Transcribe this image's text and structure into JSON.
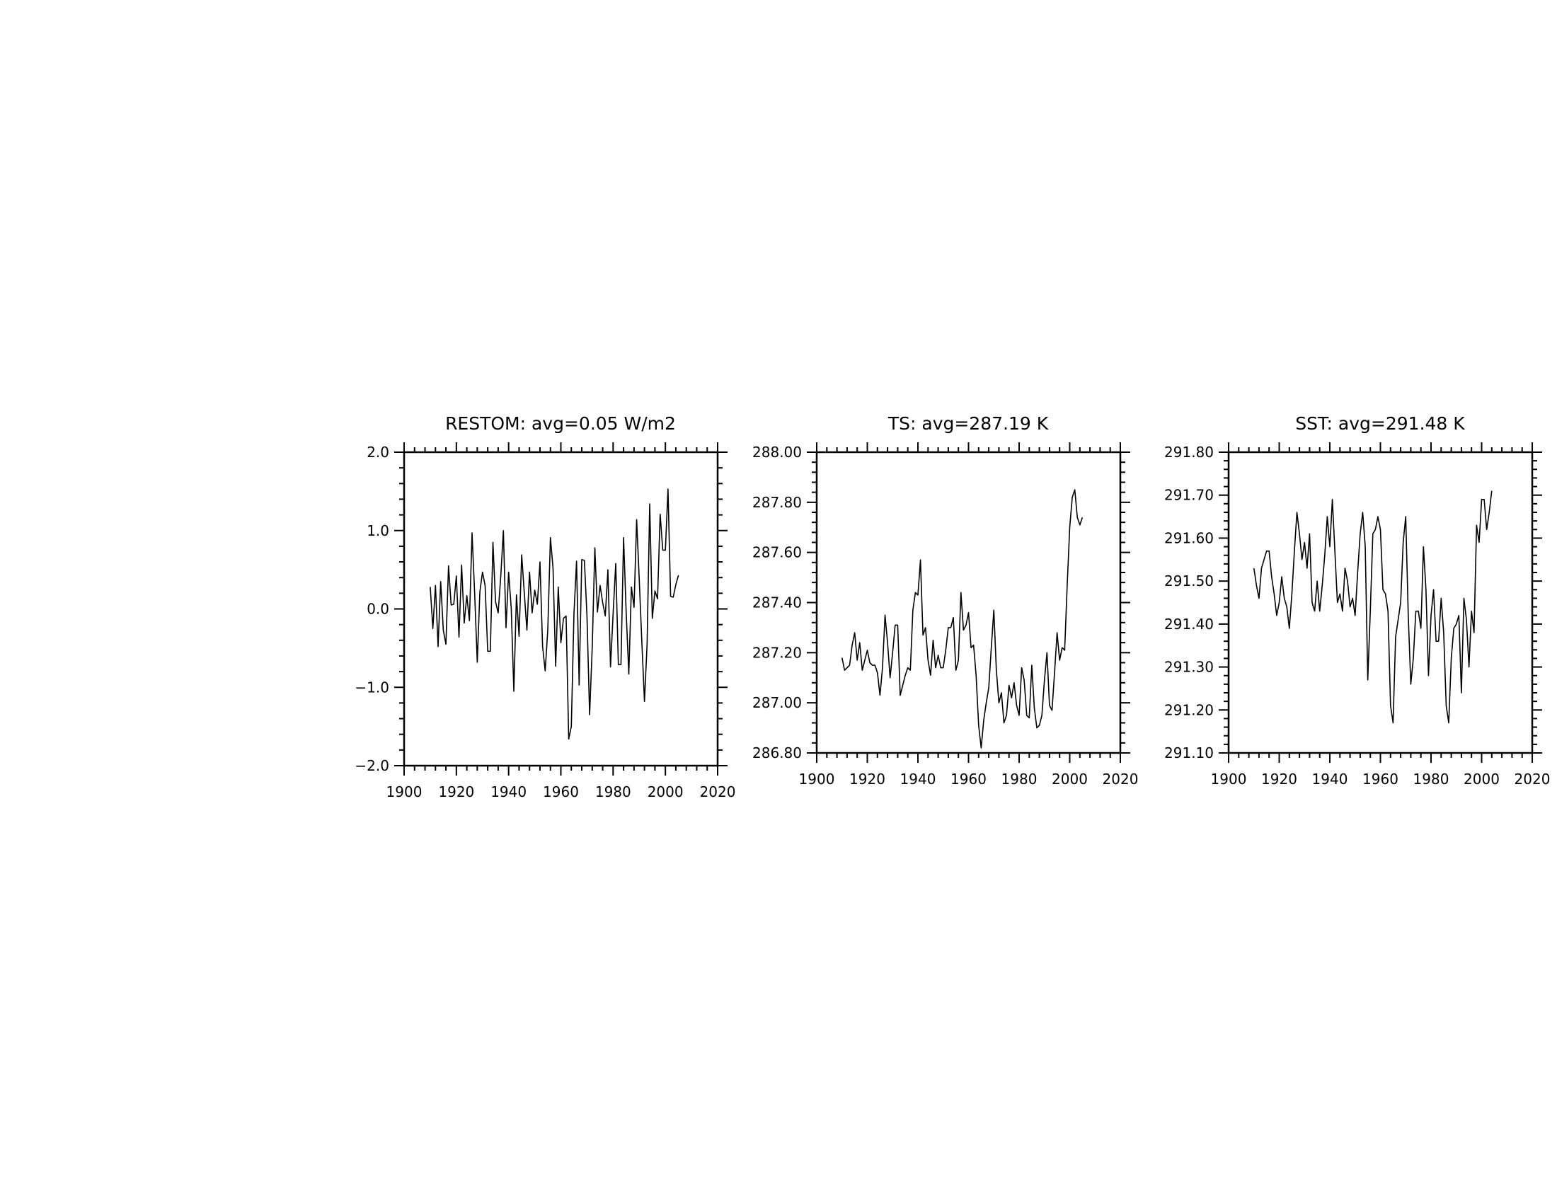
{
  "chart_data": [
    {
      "type": "line",
      "title": "RESTOM: avg=0.05 W/m2",
      "xlim": [
        1900,
        2020
      ],
      "ylim": [
        -2.0,
        2.0
      ],
      "xticks": [
        1900,
        1920,
        1940,
        1960,
        1980,
        2000,
        2020
      ],
      "xtick_labels": [
        "1900",
        "1920",
        "1940",
        "1960",
        "1980",
        "2000",
        "2020"
      ],
      "yticks": [
        -2.0,
        -1.0,
        0.0,
        1.0,
        2.0
      ],
      "ytick_labels": [
        "−2.0",
        "−1.0",
        "0.0",
        "1.0",
        "2.0"
      ],
      "grid": false,
      "x_start": 1910,
      "values": [
        0.28,
        -0.25,
        0.3,
        -0.48,
        0.35,
        -0.27,
        -0.45,
        0.55,
        0.05,
        0.06,
        0.42,
        -0.36,
        0.56,
        -0.18,
        0.17,
        -0.15,
        0.97,
        0.2,
        -0.68,
        0.22,
        0.47,
        0.3,
        -0.54,
        -0.54,
        0.85,
        0.09,
        -0.05,
        0.42,
        1.0,
        -0.24,
        0.47,
        0.01,
        -1.05,
        0.18,
        -0.35,
        0.69,
        0.2,
        -0.27,
        0.47,
        -0.05,
        0.24,
        0.06,
        0.6,
        -0.48,
        -0.79,
        -0.26,
        0.91,
        0.52,
        -0.73,
        0.28,
        -0.43,
        -0.12,
        -0.09,
        -1.66,
        -1.5,
        -0.07,
        0.61,
        -0.97,
        0.63,
        0.62,
        -0.1,
        -1.35,
        -0.49,
        0.78,
        -0.04,
        0.3,
        0.08,
        -0.09,
        0.5,
        -0.74,
        -0.06,
        0.58,
        -0.71,
        -0.71,
        0.91,
        -0.05,
        -0.83,
        0.28,
        0.02,
        1.14,
        0.37,
        -0.43,
        -1.18,
        -0.45,
        1.34,
        -0.12,
        0.23,
        0.13,
        1.21,
        0.75,
        0.75,
        1.53,
        0.16,
        0.15,
        0.31,
        0.43
      ]
    },
    {
      "type": "line",
      "title": "TS: avg=287.19 K",
      "xlim": [
        1900,
        2020
      ],
      "ylim": [
        286.8,
        288.0
      ],
      "xticks": [
        1900,
        1920,
        1940,
        1960,
        1980,
        2000,
        2020
      ],
      "xtick_labels": [
        "1900",
        "1920",
        "1940",
        "1960",
        "1980",
        "2000",
        "2020"
      ],
      "yticks": [
        286.8,
        287.0,
        287.2,
        287.4,
        287.6,
        287.8,
        288.0
      ],
      "ytick_labels": [
        "286.80",
        "287.00",
        "287.20",
        "287.40",
        "287.60",
        "287.80",
        "288.00"
      ],
      "grid": false,
      "x_start": 1910,
      "values": [
        287.18,
        287.13,
        287.14,
        287.15,
        287.23,
        287.28,
        287.17,
        287.24,
        287.13,
        287.17,
        287.21,
        287.16,
        287.15,
        287.15,
        287.12,
        287.03,
        287.14,
        287.35,
        287.24,
        287.1,
        287.2,
        287.31,
        287.31,
        287.03,
        287.07,
        287.11,
        287.14,
        287.13,
        287.37,
        287.44,
        287.43,
        287.57,
        287.27,
        287.3,
        287.17,
        287.11,
        287.25,
        287.14,
        287.19,
        287.14,
        287.14,
        287.21,
        287.3,
        287.3,
        287.34,
        287.13,
        287.17,
        287.44,
        287.29,
        287.31,
        287.36,
        287.22,
        287.23,
        287.11,
        286.91,
        286.82,
        286.93,
        287.0,
        287.06,
        287.22,
        287.37,
        287.13,
        287.0,
        287.04,
        286.92,
        286.95,
        287.07,
        287.02,
        287.08,
        286.99,
        286.95,
        287.14,
        287.09,
        286.95,
        286.94,
        287.15,
        286.98,
        286.9,
        286.91,
        286.95,
        287.09,
        287.2,
        286.99,
        286.97,
        287.12,
        287.28,
        287.17,
        287.22,
        287.21,
        287.47,
        287.7,
        287.82,
        287.85,
        287.74,
        287.71,
        287.74
      ]
    },
    {
      "type": "line",
      "title": "SST: avg=291.48 K",
      "xlim": [
        1900,
        2020
      ],
      "ylim": [
        291.1,
        291.8
      ],
      "xticks": [
        1900,
        1920,
        1940,
        1960,
        1980,
        2000,
        2020
      ],
      "xtick_labels": [
        "1900",
        "1920",
        "1940",
        "1960",
        "1980",
        "2000",
        "2020"
      ],
      "yticks": [
        291.1,
        291.2,
        291.3,
        291.4,
        291.5,
        291.6,
        291.7,
        291.8
      ],
      "ytick_labels": [
        "291.10",
        "291.20",
        "291.30",
        "291.40",
        "291.50",
        "291.60",
        "291.70",
        "291.80"
      ],
      "grid": false,
      "x_start": 1910,
      "values": [
        291.53,
        291.49,
        291.46,
        291.53,
        291.55,
        291.57,
        291.57,
        291.51,
        291.47,
        291.42,
        291.45,
        291.51,
        291.46,
        291.44,
        291.39,
        291.47,
        291.57,
        291.66,
        291.61,
        291.55,
        291.59,
        291.53,
        291.61,
        291.45,
        291.43,
        291.5,
        291.43,
        291.49,
        291.56,
        291.65,
        291.58,
        291.69,
        291.57,
        291.45,
        291.47,
        291.43,
        291.53,
        291.5,
        291.44,
        291.46,
        291.42,
        291.52,
        291.61,
        291.66,
        291.58,
        291.27,
        291.43,
        291.61,
        291.62,
        291.65,
        291.62,
        291.48,
        291.47,
        291.43,
        291.21,
        291.17,
        291.37,
        291.41,
        291.45,
        291.59,
        291.65,
        291.42,
        291.26,
        291.32,
        291.43,
        291.43,
        291.39,
        291.58,
        291.48,
        291.28,
        291.42,
        291.48,
        291.36,
        291.36,
        291.46,
        291.38,
        291.21,
        291.17,
        291.32,
        291.39,
        291.4,
        291.42,
        291.24,
        291.46,
        291.41,
        291.3,
        291.43,
        291.38,
        291.63,
        291.59,
        291.69,
        291.69,
        291.62,
        291.66,
        291.71
      ]
    }
  ]
}
